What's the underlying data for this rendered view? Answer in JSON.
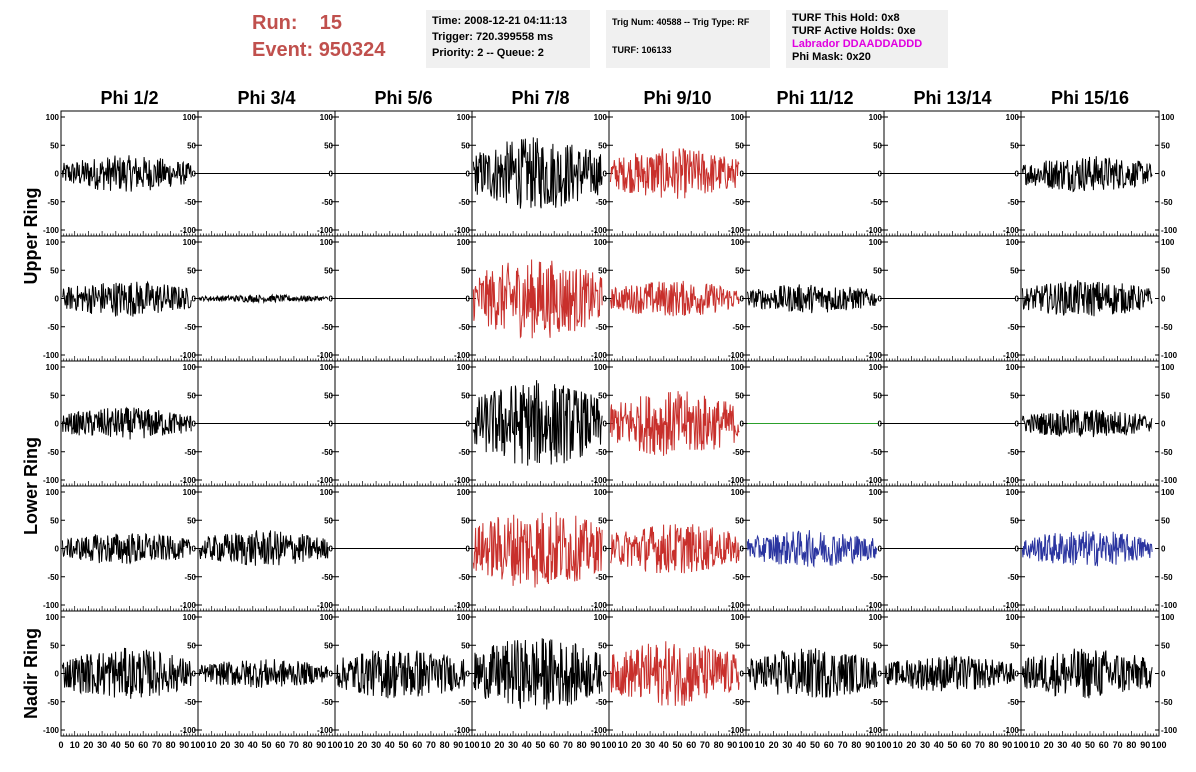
{
  "header": {
    "run_label": "Run:",
    "run_value": "15",
    "event_label": "Event:",
    "event_value": "950324",
    "time": "Time: 2008-12-21 04:11:13",
    "trigger": "Trigger: 720.399558 ms",
    "priority": "Priority: 2 -- Queue: 2",
    "trig_num": "Trig Num: 40588 -- Trig Type: RF",
    "turf": "TURF: 106133",
    "turf_this_hold": "TURF This Hold: 0x8",
    "turf_active_holds": "TURF Active Holds: 0xe",
    "labrador": "Labrador DDAADDADDD",
    "phi_mask": "Phi Mask: 0x20"
  },
  "colors": {
    "header_red": "#c0504d",
    "labrador_magenta": "#e000e0"
  },
  "chart_data": {
    "type": "line",
    "columns": [
      "Phi 1/2",
      "Phi 3/4",
      "Phi 5/6",
      "Phi 7/8",
      "Phi 9/10",
      "Phi 11/12",
      "Phi 13/14",
      "Phi 15/16"
    ],
    "row_labels": [
      {
        "label": "Upper Ring",
        "rows": [
          0,
          1
        ]
      },
      {
        "label": "Lower Ring",
        "rows": [
          2,
          3
        ]
      },
      {
        "label": "Nadir Ring",
        "rows": [
          4
        ]
      }
    ],
    "xlim": [
      0,
      100
    ],
    "ylim": [
      -100,
      100
    ],
    "y_ticks": [
      100,
      50,
      0,
      -50,
      -100
    ],
    "x_ticks": [
      0,
      10,
      20,
      30,
      40,
      50,
      60,
      70,
      80,
      90,
      100
    ],
    "series_colors": {
      "k": "#000000",
      "r": "#c8302c",
      "b": "#2b35a0",
      "g": "#2ca02c"
    },
    "panels": [
      [
        {
          "color": "k",
          "amplitude": 25,
          "flat": false
        },
        {
          "color": "k",
          "amplitude": 0,
          "flat": true
        },
        {
          "color": "k",
          "amplitude": 0,
          "flat": true
        },
        {
          "color": "k",
          "amplitude": 50,
          "flat": false
        },
        {
          "color": "r",
          "amplitude": 35,
          "flat": false
        },
        {
          "color": "k",
          "amplitude": 0,
          "flat": true
        },
        {
          "color": "k",
          "amplitude": 0,
          "flat": true
        },
        {
          "color": "k",
          "amplitude": 25,
          "flat": false
        }
      ],
      [
        {
          "color": "k",
          "amplitude": 25,
          "flat": false
        },
        {
          "color": "k",
          "amplitude": 5,
          "flat": false
        },
        {
          "color": "k",
          "amplitude": 0,
          "flat": true
        },
        {
          "color": "r",
          "amplitude": 55,
          "flat": false
        },
        {
          "color": "r",
          "amplitude": 25,
          "flat": false
        },
        {
          "color": "k",
          "amplitude": 20,
          "flat": false
        },
        {
          "color": "k",
          "amplitude": 0,
          "flat": true
        },
        {
          "color": "k",
          "amplitude": 25,
          "flat": false
        }
      ],
      [
        {
          "color": "k",
          "amplitude": 22,
          "flat": false
        },
        {
          "color": "k",
          "amplitude": 0,
          "flat": true
        },
        {
          "color": "k",
          "amplitude": 0,
          "flat": true
        },
        {
          "color": "k",
          "amplitude": 60,
          "flat": false
        },
        {
          "color": "r",
          "amplitude": 45,
          "flat": false
        },
        {
          "color": "g",
          "amplitude": 0,
          "flat": true
        },
        {
          "color": "k",
          "amplitude": 0,
          "flat": true
        },
        {
          "color": "k",
          "amplitude": 20,
          "flat": false
        }
      ],
      [
        {
          "color": "k",
          "amplitude": 22,
          "flat": false
        },
        {
          "color": "k",
          "amplitude": 25,
          "flat": false
        },
        {
          "color": "k",
          "amplitude": 0,
          "flat": true
        },
        {
          "color": "r",
          "amplitude": 55,
          "flat": false
        },
        {
          "color": "r",
          "amplitude": 35,
          "flat": false
        },
        {
          "color": "b",
          "amplitude": 25,
          "flat": false
        },
        {
          "color": "k",
          "amplitude": 0,
          "flat": true
        },
        {
          "color": "b",
          "amplitude": 25,
          "flat": false
        }
      ],
      [
        {
          "color": "k",
          "amplitude": 35,
          "flat": false
        },
        {
          "color": "k",
          "amplitude": 20,
          "flat": false
        },
        {
          "color": "k",
          "amplitude": 35,
          "flat": false
        },
        {
          "color": "k",
          "amplitude": 50,
          "flat": false
        },
        {
          "color": "r",
          "amplitude": 45,
          "flat": false
        },
        {
          "color": "k",
          "amplitude": 35,
          "flat": false
        },
        {
          "color": "k",
          "amplitude": 25,
          "flat": false
        },
        {
          "color": "k",
          "amplitude": 35,
          "flat": false
        }
      ]
    ]
  }
}
